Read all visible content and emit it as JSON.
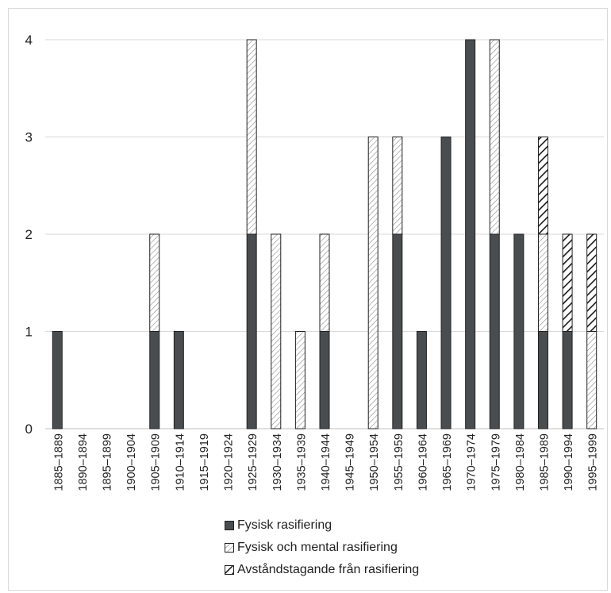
{
  "chart_data": {
    "type": "bar",
    "stacked": true,
    "categories": [
      "1885–1889",
      "1890–1894",
      "1895–1899",
      "1900–1904",
      "1905–1909",
      "1910–1914",
      "1915–1919",
      "1920–1924",
      "1925–1929",
      "1930–1934",
      "1935–1939",
      "1940–1944",
      "1945–1949",
      "1950–1954",
      "1955–1959",
      "1960–1964",
      "1965–1969",
      "1970–1974",
      "1975–1979",
      "1980–1984",
      "1985–1989",
      "1990–1994",
      "1995–1999"
    ],
    "series": [
      {
        "name": "Fysisk rasifiering",
        "color": "#4a4d50",
        "pattern": "solid",
        "values": [
          1,
          0,
          0,
          0,
          1,
          1,
          0,
          0,
          2,
          0,
          0,
          1,
          0,
          0,
          2,
          1,
          3,
          4,
          2,
          2,
          1,
          1,
          0
        ]
      },
      {
        "name": "Fysisk och mental rasifiering",
        "color": "#ffffff",
        "pattern": "light-diagonal-hatch",
        "values": [
          0,
          0,
          0,
          0,
          1,
          0,
          0,
          0,
          2,
          2,
          1,
          1,
          0,
          3,
          1,
          0,
          0,
          0,
          2,
          0,
          1,
          0,
          1
        ]
      },
      {
        "name": "Avståndstagande från rasifiering",
        "color": "#ffffff",
        "pattern": "dark-diagonal-hatch",
        "values": [
          0,
          0,
          0,
          0,
          0,
          0,
          0,
          0,
          0,
          0,
          0,
          0,
          0,
          0,
          0,
          0,
          0,
          0,
          0,
          0,
          1,
          1,
          1
        ]
      }
    ],
    "yticks": [
      0,
      1,
      2,
      3,
      4
    ],
    "ylim": [
      0,
      4
    ],
    "grid": true,
    "legend_position": "bottom"
  }
}
